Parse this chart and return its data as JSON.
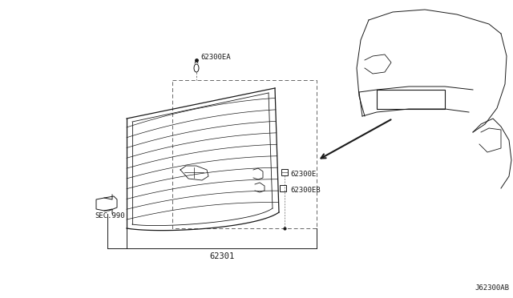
{
  "bg_color": "#ffffff",
  "line_color": "#1a1a1a",
  "dashed_color": "#666666",
  "label_color": "#1a1a1a",
  "font_size": 6.5,
  "corner_label": "J62300AB",
  "labels": {
    "grille": "62301",
    "clip_top": "62300EA",
    "clip_right_top": "62300E",
    "clip_right_bot": "62300EB",
    "sec": "SEC.990"
  }
}
